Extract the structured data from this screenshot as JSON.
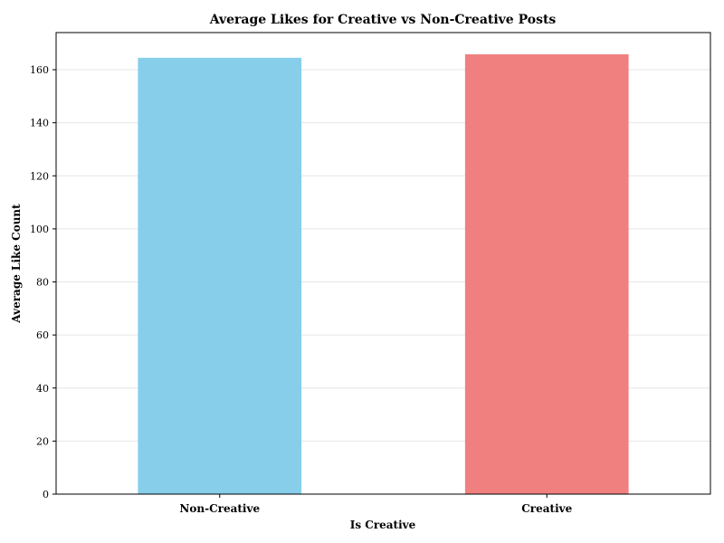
{
  "chart_data": {
    "type": "bar",
    "title": "Average Likes for Creative vs Non-Creative Posts",
    "xlabel": "Is Creative",
    "ylabel": "Average Like Count",
    "categories": [
      "Non-Creative",
      "Creative"
    ],
    "values": [
      164.5,
      165.8
    ],
    "colors": [
      "#87CEEB",
      "#F08080"
    ],
    "ylim": [
      0,
      174
    ],
    "yticks": [
      0,
      20,
      40,
      60,
      80,
      100,
      120,
      140,
      160
    ],
    "grid": true,
    "legend": "none"
  }
}
